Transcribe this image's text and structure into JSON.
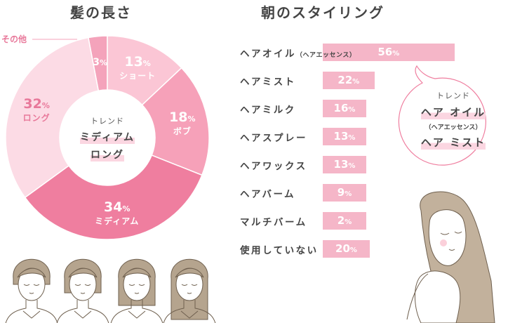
{
  "titles": {
    "hair_length": "髪の長さ",
    "morning_styling": "朝のスタイリング"
  },
  "chart_data": [
    {
      "type": "pie",
      "title": "髪の長さ",
      "unit": "%",
      "categories": [
        "その他",
        "ショート",
        "ボブ",
        "ミディアム",
        "ロング"
      ],
      "values": [
        3,
        13,
        18,
        34,
        32
      ],
      "colors": [
        "#f4a3bb",
        "#fbc6d5",
        "#f6a1b9",
        "#ef7e9f",
        "#fcdbe5"
      ],
      "center_heading": "トレンド",
      "center_items": [
        "ミディアム",
        "ロング"
      ]
    },
    {
      "type": "bar",
      "title": "朝のスタイリング",
      "orientation": "horizontal",
      "unit": "%",
      "categories": [
        "ヘアオイル",
        "ヘアミスト",
        "ヘアミルク",
        "ヘアスプレー",
        "ヘアワックス",
        "ヘアバーム",
        "マルチバーム",
        "使用していない"
      ],
      "category_notes": [
        "（ヘアエッセンス）",
        "",
        "",
        "",
        "",
        "",
        "",
        ""
      ],
      "values": [
        56,
        22,
        16,
        13,
        13,
        9,
        2,
        20
      ],
      "bar_color": "#f5b6c8"
    }
  ],
  "trend_bubble": {
    "heading": "トレンド",
    "item1": "ヘア オイル",
    "item1_note": "（ヘアエッセンス）",
    "item2": "ヘア ミスト"
  },
  "percent_sign": "%"
}
